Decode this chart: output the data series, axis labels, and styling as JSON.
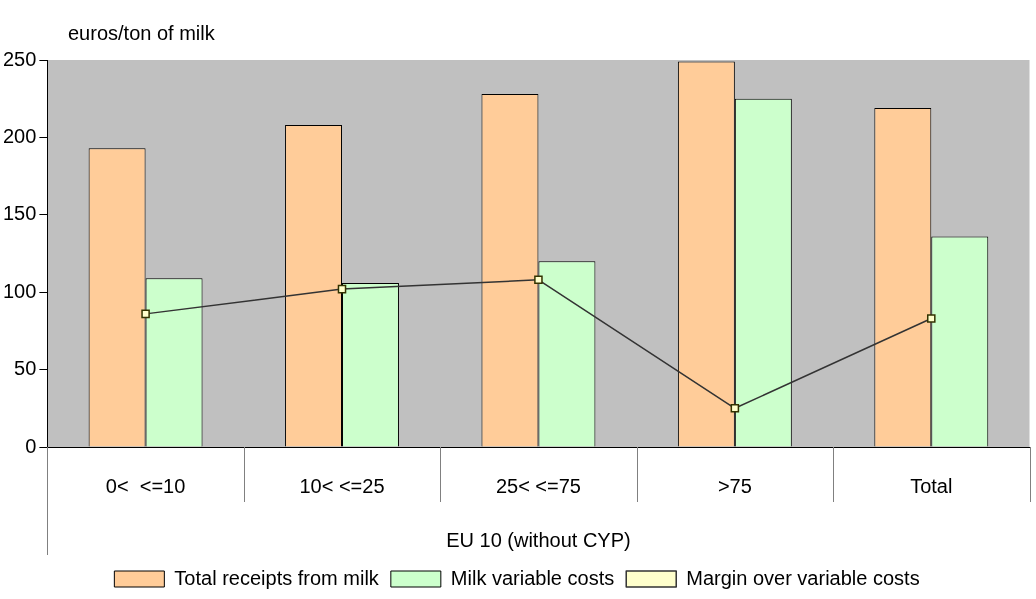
{
  "chart_data": {
    "type": "bar",
    "ylabel": "euros/ton of milk",
    "xlabel": "EU 10 (without CYP)",
    "categories": [
      "0<  <=10",
      "10< <=25",
      "25< <=75",
      ">75",
      "Total"
    ],
    "series": [
      {
        "name": "Total receipts from milk",
        "color": "#ffcc99",
        "values": [
          193,
          208,
          228,
          249,
          219
        ]
      },
      {
        "name": "Milk variable costs",
        "color": "#ccffcc",
        "values": [
          109,
          106,
          120,
          225,
          136
        ]
      },
      {
        "name": "Margin over variable costs",
        "type": "line",
        "color": "#333333",
        "values": [
          86,
          102,
          108,
          25,
          83
        ]
      }
    ],
    "ylim": [
      0,
      250
    ],
    "yticks": [
      0,
      50,
      100,
      150,
      200,
      250
    ],
    "marker": "square",
    "legend": "bottom"
  }
}
